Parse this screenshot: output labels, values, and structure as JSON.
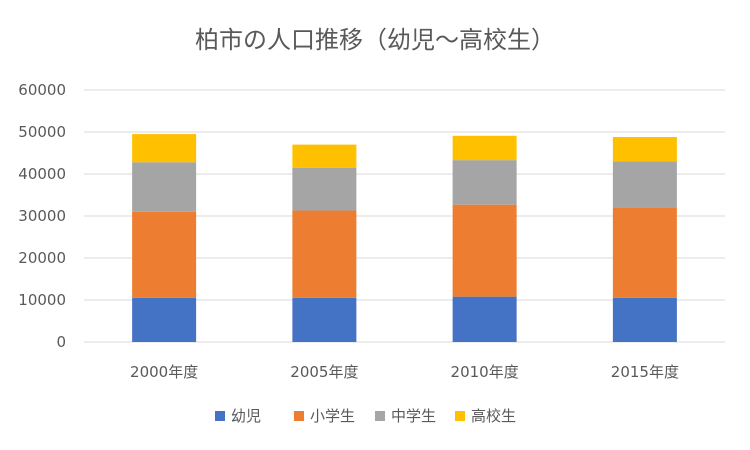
{
  "chart_data": {
    "type": "bar",
    "stacked": true,
    "title": "柏市の人口推移（幼児～高校生）",
    "xlabel": "",
    "ylabel": "",
    "categories": [
      "2000年度",
      "2005年度",
      "2010年度",
      "2015年度"
    ],
    "series": [
      {
        "name": "幼児",
        "color": "#4472C4",
        "values": [
          10500,
          10500,
          10800,
          10500
        ]
      },
      {
        "name": "小学生",
        "color": "#ED7D31",
        "values": [
          20500,
          20800,
          21900,
          21500
        ]
      },
      {
        "name": "中学生",
        "color": "#A5A5A5",
        "values": [
          11800,
          10200,
          10600,
          11000
        ]
      },
      {
        "name": "高校生",
        "color": "#FFC000",
        "values": [
          6700,
          5500,
          5800,
          5800
        ]
      }
    ],
    "ylim": [
      0,
      60000
    ],
    "yticks": [
      0,
      10000,
      20000,
      30000,
      40000,
      50000,
      60000
    ],
    "grid": true,
    "legend": "bottom"
  }
}
